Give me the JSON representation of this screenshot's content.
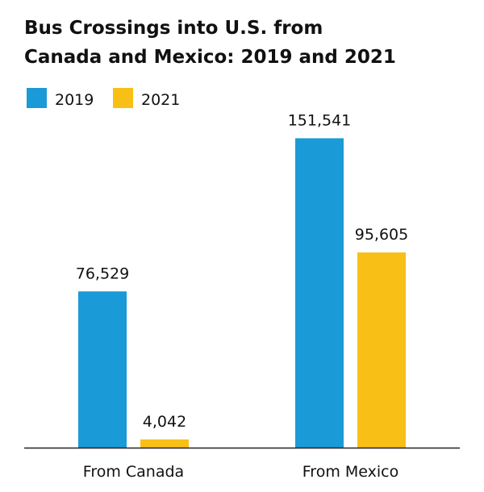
{
  "chart_data": {
    "type": "bar",
    "title_lines": [
      "Bus Crossings into U.S. from",
      "Canada and Mexico: 2019 and 2021"
    ],
    "categories": [
      "From Canada",
      "From Mexico"
    ],
    "series": [
      {
        "name": "2019",
        "color": "#1a9ad6",
        "values": [
          76529,
          151541
        ],
        "labels": [
          "76,529",
          "151,541"
        ]
      },
      {
        "name": "2021",
        "color": "#f8bf17",
        "values": [
          4042,
          95605
        ],
        "labels": [
          "4,042",
          "95,605"
        ]
      }
    ],
    "ylim": [
      0,
      160000
    ],
    "grid": false,
    "legend": "top-left",
    "axis_color": "#222222"
  }
}
